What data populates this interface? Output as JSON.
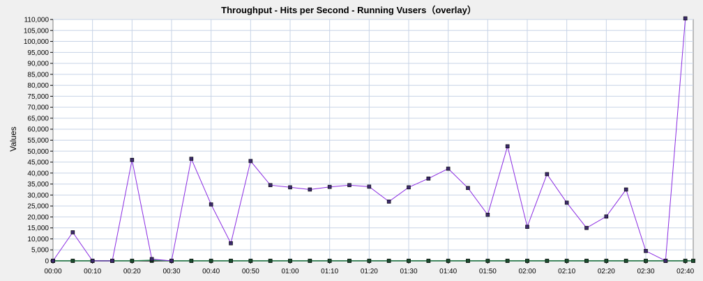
{
  "chart_data": {
    "type": "line",
    "title": "Throughput - Hits per Second - Running Vusers（overlay）",
    "ylabel": "Values",
    "xlabel": "",
    "ylim": [
      0,
      110000
    ],
    "y_ticks": [
      "0",
      "5,000",
      "10,000",
      "15,000",
      "20,000",
      "25,000",
      "30,000",
      "35,000",
      "40,000",
      "45,000",
      "50,000",
      "55,000",
      "60,000",
      "65,000",
      "70,000",
      "75,000",
      "80,000",
      "85,000",
      "90,000",
      "95,000",
      "100,000",
      "105,000",
      "110,000"
    ],
    "x_ticks": [
      "00:00",
      "00:10",
      "00:20",
      "00:30",
      "00:40",
      "00:50",
      "01:00",
      "01:10",
      "01:20",
      "01:30",
      "01:40",
      "01:50",
      "02:00",
      "02:10",
      "02:20",
      "02:30",
      "02:40"
    ],
    "x_range_seconds": [
      0,
      162
    ],
    "grid": true,
    "colors": {
      "throughput": "#8a2be2",
      "hits": "#2e8b57",
      "vusers": "#000000",
      "grid": "#c7d3e6"
    },
    "series": [
      {
        "key": "throughput",
        "x": [
          "00:00",
          "00:05",
          "00:10",
          "00:15",
          "00:20",
          "00:25",
          "00:30",
          "00:35",
          "00:40",
          "00:45",
          "00:50",
          "00:55",
          "01:00",
          "01:05",
          "01:10",
          "01:15",
          "01:20",
          "01:25",
          "01:30",
          "01:35",
          "01:40",
          "01:45",
          "01:50",
          "01:55",
          "02:00",
          "02:05",
          "02:10",
          "02:15",
          "02:20",
          "02:25",
          "02:30",
          "02:35",
          "02:40"
        ],
        "values": [
          0,
          13000,
          0,
          0,
          46000,
          800,
          0,
          46500,
          25700,
          8000,
          45500,
          34500,
          33500,
          32500,
          33700,
          34500,
          33800,
          27000,
          33500,
          37500,
          42000,
          33200,
          21000,
          52200,
          15500,
          39500,
          26500,
          15000,
          20200,
          32500,
          4500,
          0,
          110500
        ]
      },
      {
        "key": "hits",
        "x": [
          "00:00",
          "00:05",
          "00:10",
          "00:15",
          "00:20",
          "00:25",
          "00:30",
          "00:35",
          "00:40",
          "00:45",
          "00:50",
          "00:55",
          "01:00",
          "01:05",
          "01:10",
          "01:15",
          "01:20",
          "01:25",
          "01:30",
          "01:35",
          "01:40",
          "01:45",
          "01:50",
          "01:55",
          "02:00",
          "02:05",
          "02:10",
          "02:15",
          "02:20",
          "02:25",
          "02:30",
          "02:35",
          "02:40",
          "02:42"
        ],
        "values": [
          0,
          0,
          0,
          0,
          0,
          300,
          0,
          0,
          0,
          0,
          0,
          0,
          0,
          0,
          0,
          0,
          0,
          0,
          0,
          0,
          0,
          0,
          0,
          0,
          0,
          0,
          0,
          0,
          0,
          0,
          0,
          0,
          0,
          0
        ]
      },
      {
        "key": "vusers",
        "x": [
          "00:00",
          "00:05",
          "00:10",
          "00:15",
          "00:20",
          "00:25",
          "00:30",
          "00:35",
          "00:40",
          "00:45",
          "00:50",
          "00:55",
          "01:00",
          "01:05",
          "01:10",
          "01:15",
          "01:20",
          "01:25",
          "01:30",
          "01:35",
          "01:40",
          "01:45",
          "01:50",
          "01:55",
          "02:00",
          "02:05",
          "02:10",
          "02:15",
          "02:20",
          "02:25",
          "02:30",
          "02:35",
          "02:40",
          "02:42"
        ],
        "values": [
          0,
          0,
          0,
          0,
          0,
          0,
          0,
          0,
          0,
          0,
          0,
          0,
          0,
          0,
          0,
          0,
          0,
          0,
          0,
          0,
          0,
          0,
          0,
          0,
          0,
          0,
          0,
          0,
          0,
          0,
          0,
          0,
          0,
          0
        ]
      }
    ]
  }
}
